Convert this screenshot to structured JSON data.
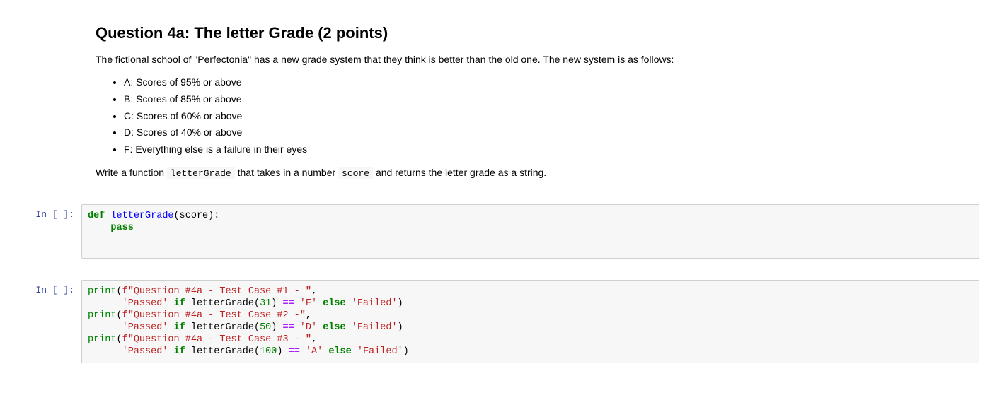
{
  "heading": "Question 4a: The letter Grade (2 points)",
  "intro_pre": "The fictional school of \"Perfectonia\" has a new grade system that they think is better than the old one. The new system is as follows:",
  "bullets": {
    "b0": "A: Scores of 95% or above",
    "b1": "B: Scores of 85% or above",
    "b2": "C: Scores of 60% or above",
    "b3": "D: Scores of 40% or above",
    "b4": "F: Everything else is a failure in their eyes"
  },
  "instruction": {
    "pre": "Write a function ",
    "code1": "letterGrade",
    "mid": " that takes in a number ",
    "code2": "score",
    "post": " and returns the letter grade as a string."
  },
  "prompt_label": "In  [ ]:",
  "cell1": {
    "def_kw": "def",
    "fn_name": "letterGrade",
    "sig_rest": "(score):",
    "pass_kw": "pass"
  },
  "cell2": {
    "print_name": "print",
    "fprefix": "f\"",
    "test1_label": "Question #4a - Test Case #1 - ",
    "test2_label": "Question #4a - Test Case #2 -",
    "test3_label": "Question #4a - Test Case #3 - ",
    "dq": "\"",
    "comma": ",",
    "passed": "'Passed'",
    "failed": "'Failed'",
    "if_kw": "if",
    "else_kw": "else",
    "eq": "==",
    "call_fn": "letterGrade",
    "arg1": "31",
    "arg2": "50",
    "arg3": "100",
    "res1": "'F'",
    "res2": "'D'",
    "res3": "'A'",
    "rparen": ")"
  },
  "colors": {
    "keyword": "#008000",
    "function_def": "#0000ff",
    "string": "#ba2121",
    "operator": "#aa22ff",
    "prompt": "#303f9f",
    "cell_bg": "#f7f7f7",
    "cell_border": "#cfcfcf",
    "page_bg": "#ffffff"
  },
  "typography": {
    "heading_fontsize": 22,
    "body_fontsize": 14,
    "code_fontsize": 13.5,
    "code_family": "monospace"
  }
}
